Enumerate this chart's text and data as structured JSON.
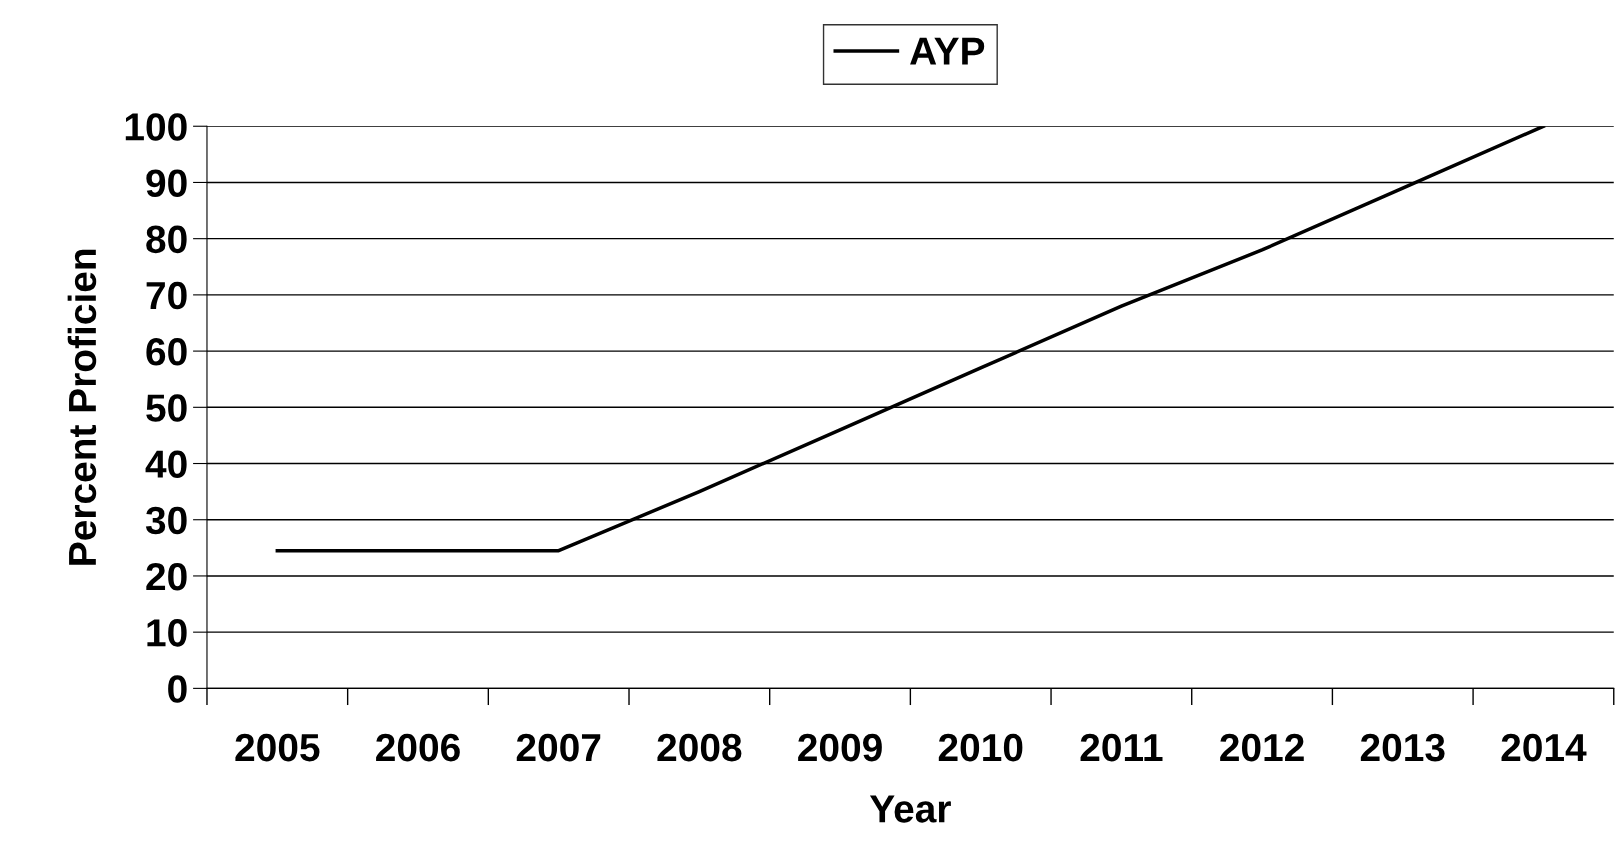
{
  "chart_data": {
    "type": "line",
    "xlabel": "Year",
    "ylabel": "Percent Proficien",
    "categories": [
      "2005",
      "2006",
      "2007",
      "2008",
      "2009",
      "2010",
      "2011",
      "2012",
      "2013",
      "2014"
    ],
    "series": [
      {
        "name": "AYP",
        "color": "#000000",
        "values": [
          24.5,
          24.5,
          24.5,
          35,
          46,
          57,
          68,
          78,
          89,
          100
        ]
      }
    ],
    "ylim": [
      0,
      100
    ],
    "yticks": [
      0,
      10,
      20,
      30,
      40,
      50,
      60,
      70,
      80,
      90,
      100
    ],
    "grid": "y",
    "legend": "top",
    "marker": "none",
    "line_style": "solid"
  }
}
